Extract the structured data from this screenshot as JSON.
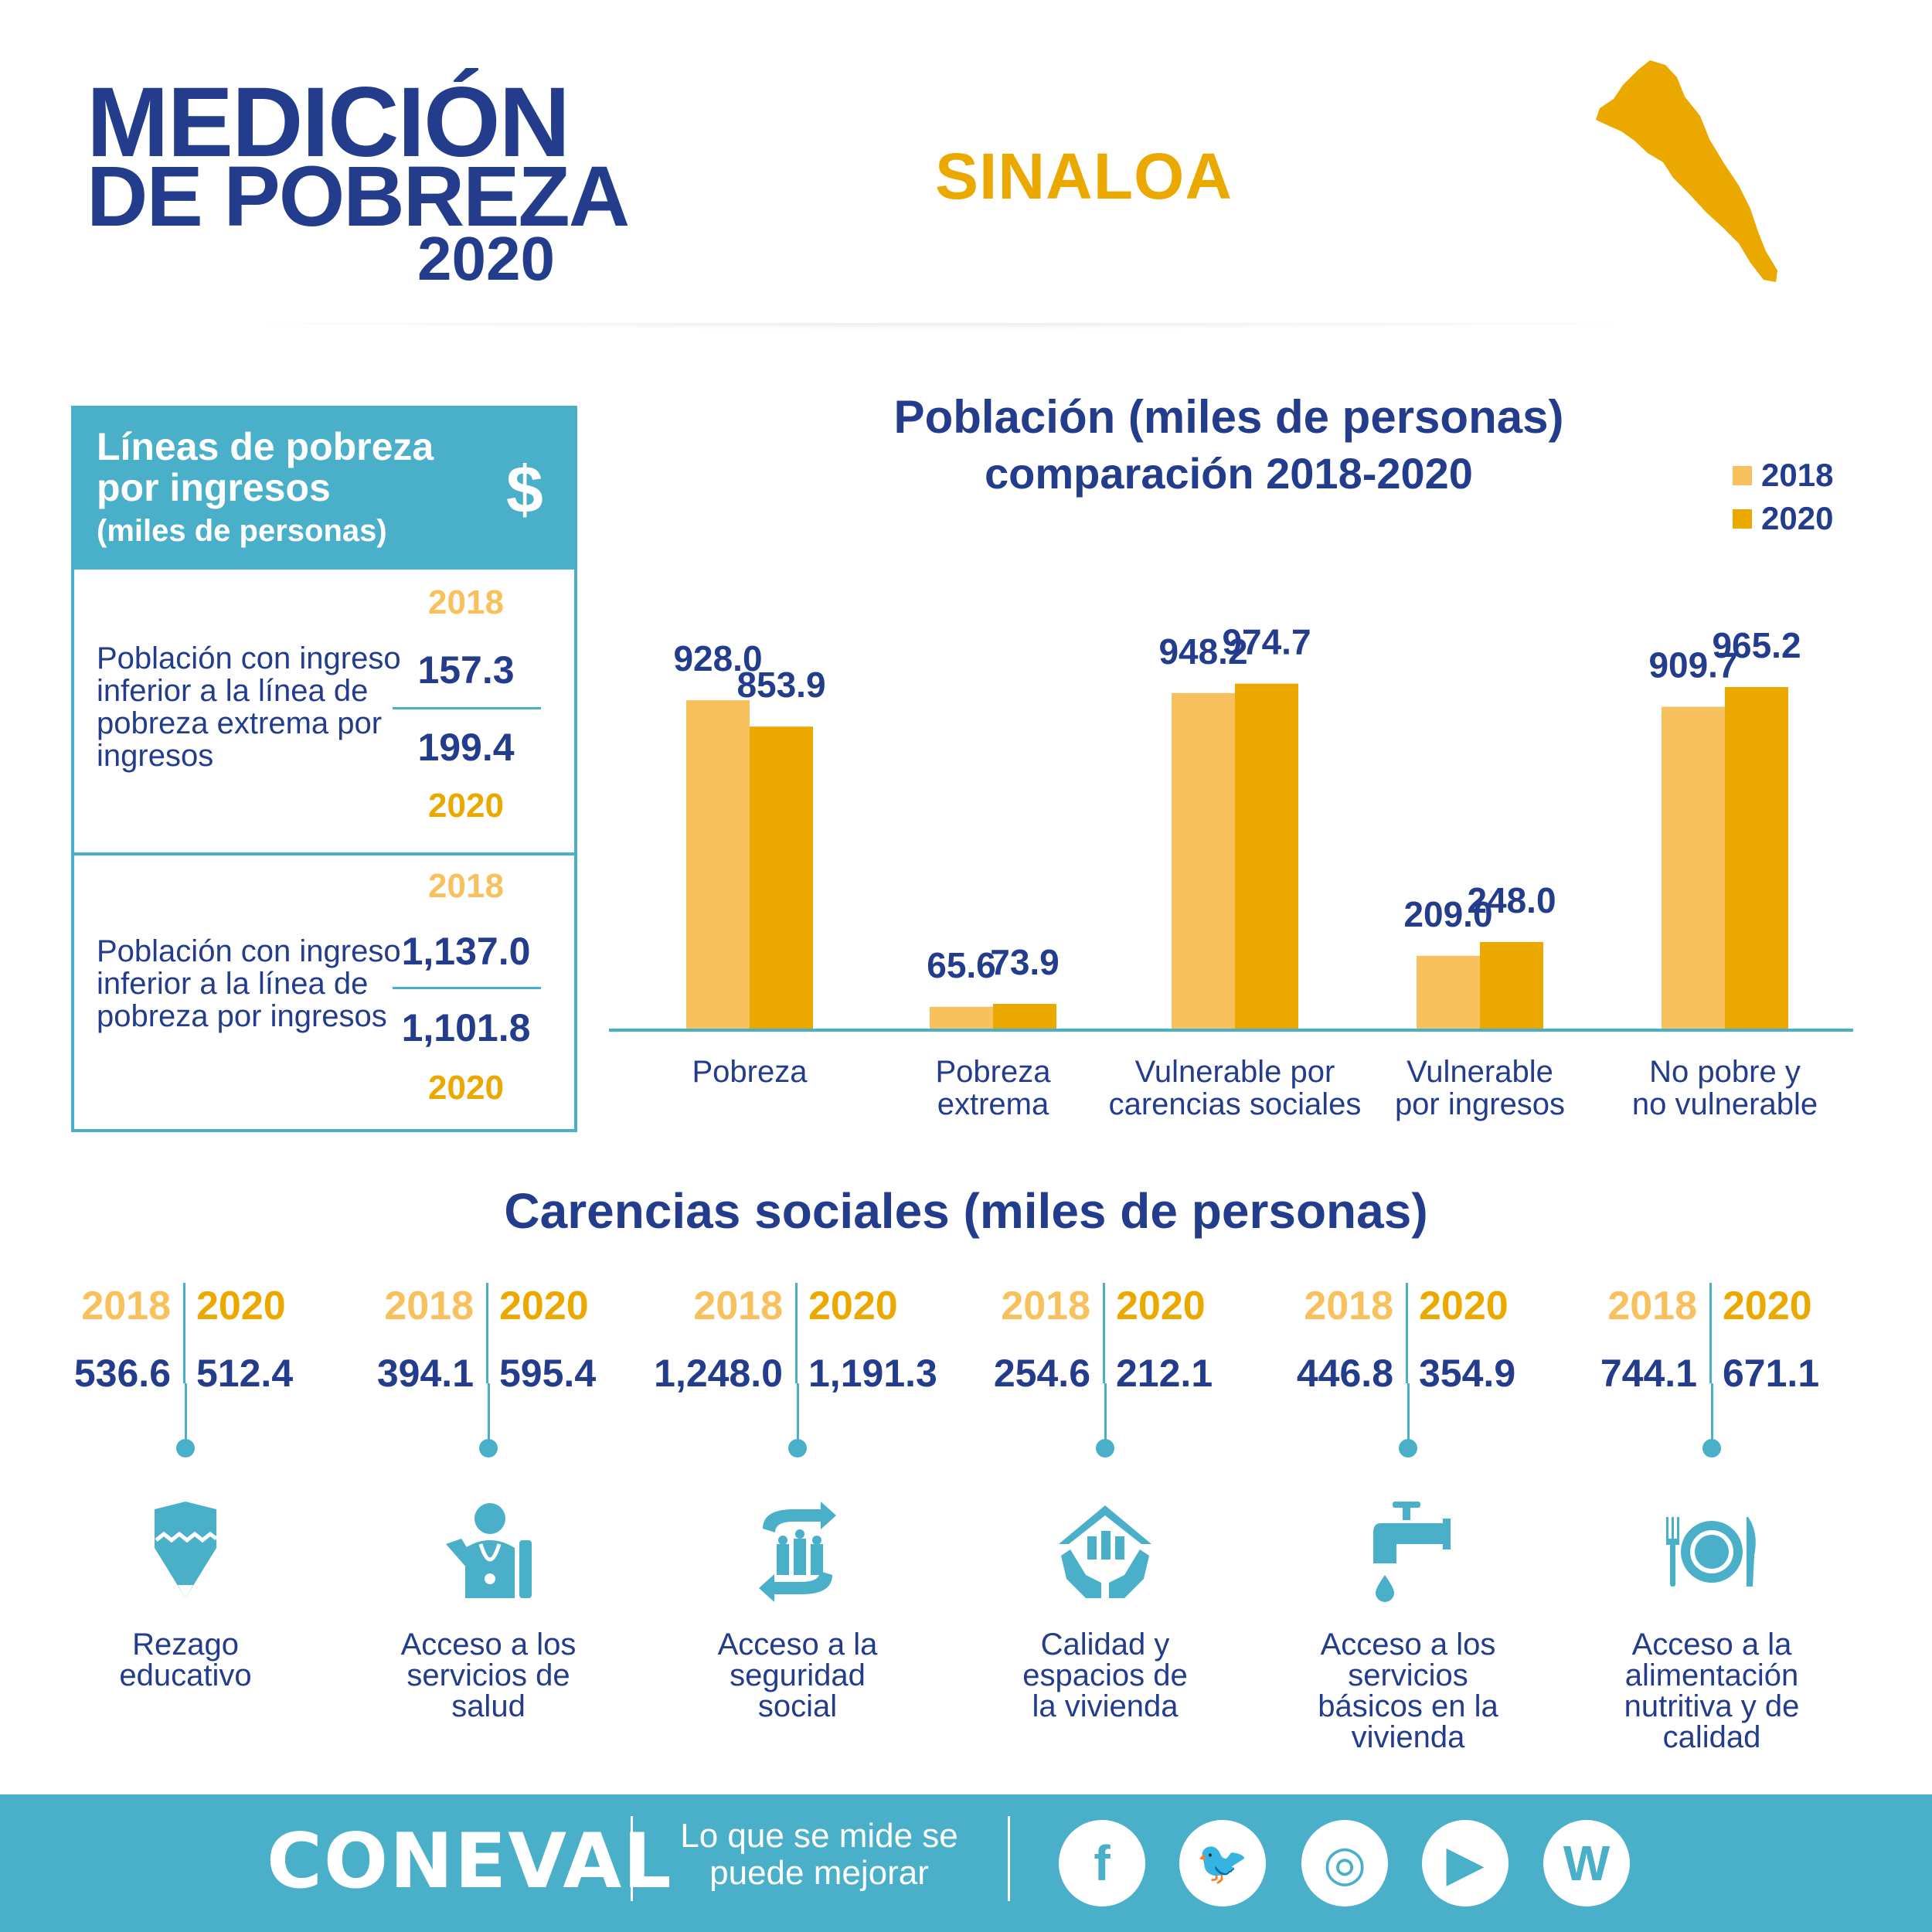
{
  "header": {
    "logo_line1": "MEDICIÓN",
    "logo_line2": "DE POBREZA",
    "logo_line3": "2020",
    "state": "SINALOA"
  },
  "lines_box": {
    "title": "Líneas de pobreza por ingresos",
    "subtitle": "(miles de personas)",
    "icon": "dollar-icon",
    "rows": [
      {
        "label": "Población con ingreso inferior a la línea de pobreza extrema por ingresos",
        "year_a": "2018",
        "value_a": "157.3",
        "value_b": "199.4",
        "year_b": "2020"
      },
      {
        "label": "Población con ingreso inferior a la línea de pobreza por ingresos",
        "year_a": "2018",
        "value_a": "1,137.0",
        "value_b": "1,101.8",
        "year_b": "2020"
      }
    ]
  },
  "chart_data": {
    "type": "bar",
    "title": "Población (miles de personas)",
    "subtitle": "comparación 2018-2020",
    "categories": [
      "Pobreza",
      "Pobreza extrema",
      "Vulnerable por carencias sociales",
      "Vulnerable por ingresos",
      "No pobre y no vulnerable"
    ],
    "series": [
      {
        "name": "2018",
        "values": [
          928.0,
          65.6,
          948.2,
          209.0,
          909.7
        ],
        "labels": [
          "928.0",
          "65.6",
          "948.2",
          "209.0",
          "909.7"
        ],
        "color": "#f9c15d"
      },
      {
        "name": "2020",
        "values": [
          853.9,
          73.9,
          974.7,
          248.0,
          965.2
        ],
        "labels": [
          "853.9",
          "73.9",
          "974.7",
          "248.0",
          "965.2"
        ],
        "color": "#eba900"
      }
    ],
    "category_lines": [
      [
        "Pobreza"
      ],
      [
        "Pobreza",
        "extrema"
      ],
      [
        "Vulnerable por",
        "carencias sociales"
      ],
      [
        "Vulnerable",
        "por ingresos"
      ],
      [
        "No pobre y",
        "no vulnerable"
      ]
    ],
    "legend": "top-right",
    "grid": false
  },
  "carencias": {
    "title": "Carencias sociales (miles de personas)",
    "year_a": "2018",
    "year_b": "2020",
    "items": [
      {
        "v2018": "536.6",
        "v2020": "512.4",
        "label_lines": [
          "Rezago",
          "educativo"
        ],
        "icon": "pencil-icon"
      },
      {
        "v2018": "394.1",
        "v2020": "595.4",
        "label_lines": [
          "Acceso a los",
          "servicios de",
          "salud"
        ],
        "icon": "doctor-icon"
      },
      {
        "v2018": "1,248.0",
        "v2020": "1,191.3",
        "label_lines": [
          "Acceso a la",
          "seguridad",
          "social"
        ],
        "icon": "social-security-icon"
      },
      {
        "v2018": "254.6",
        "v2020": "212.1",
        "label_lines": [
          "Calidad y",
          "espacios de",
          "la vivienda"
        ],
        "icon": "house-hands-icon"
      },
      {
        "v2018": "446.8",
        "v2020": "354.9",
        "label_lines": [
          "Acceso a los",
          "servicios",
          "básicos en la",
          "vivienda"
        ],
        "icon": "faucet-icon"
      },
      {
        "v2018": "744.1",
        "v2020": "671.1",
        "label_lines": [
          "Acceso a la",
          "alimentación",
          "nutritiva y de",
          "calidad"
        ],
        "icon": "plate-icon"
      }
    ]
  },
  "footer": {
    "brand": "CONEVAL",
    "slogan": "Lo que se mide se puede mejorar",
    "social": [
      {
        "icon": "facebook-icon",
        "glyph": "f"
      },
      {
        "icon": "twitter-icon",
        "glyph": "🐦"
      },
      {
        "icon": "instagram-icon",
        "glyph": "◎"
      },
      {
        "icon": "youtube-icon",
        "glyph": "▶"
      },
      {
        "icon": "wordpress-icon",
        "glyph": "W"
      }
    ]
  },
  "colors": {
    "navy": "#233c8c",
    "gold": "#eba900",
    "light_gold": "#f9c15d",
    "teal": "#4aafc9"
  }
}
